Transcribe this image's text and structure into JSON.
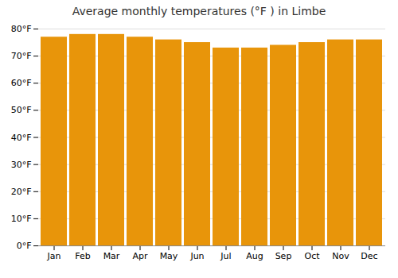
{
  "chart_data": {
    "type": "bar",
    "title": "Average monthly temperatures (°F ) in Limbe",
    "categories": [
      "Jan",
      "Feb",
      "Mar",
      "Apr",
      "May",
      "Jun",
      "Jul",
      "Aug",
      "Sep",
      "Oct",
      "Nov",
      "Dec"
    ],
    "values": [
      77,
      78,
      78,
      77,
      76,
      75,
      73,
      73,
      74,
      75,
      76,
      76
    ],
    "color": "#E8950A",
    "ylim": [
      0,
      80
    ],
    "yticks": [
      {
        "value": 0,
        "label": "0°F"
      },
      {
        "value": 10,
        "label": "10°F"
      },
      {
        "value": 20,
        "label": "20°F"
      },
      {
        "value": 30,
        "label": "30°F"
      },
      {
        "value": 40,
        "label": "40°F"
      },
      {
        "value": 50,
        "label": "50°F"
      },
      {
        "value": 60,
        "label": "60°F"
      },
      {
        "value": 70,
        "label": "70°F"
      },
      {
        "value": 80,
        "label": "80°F"
      }
    ],
    "grid": true
  }
}
